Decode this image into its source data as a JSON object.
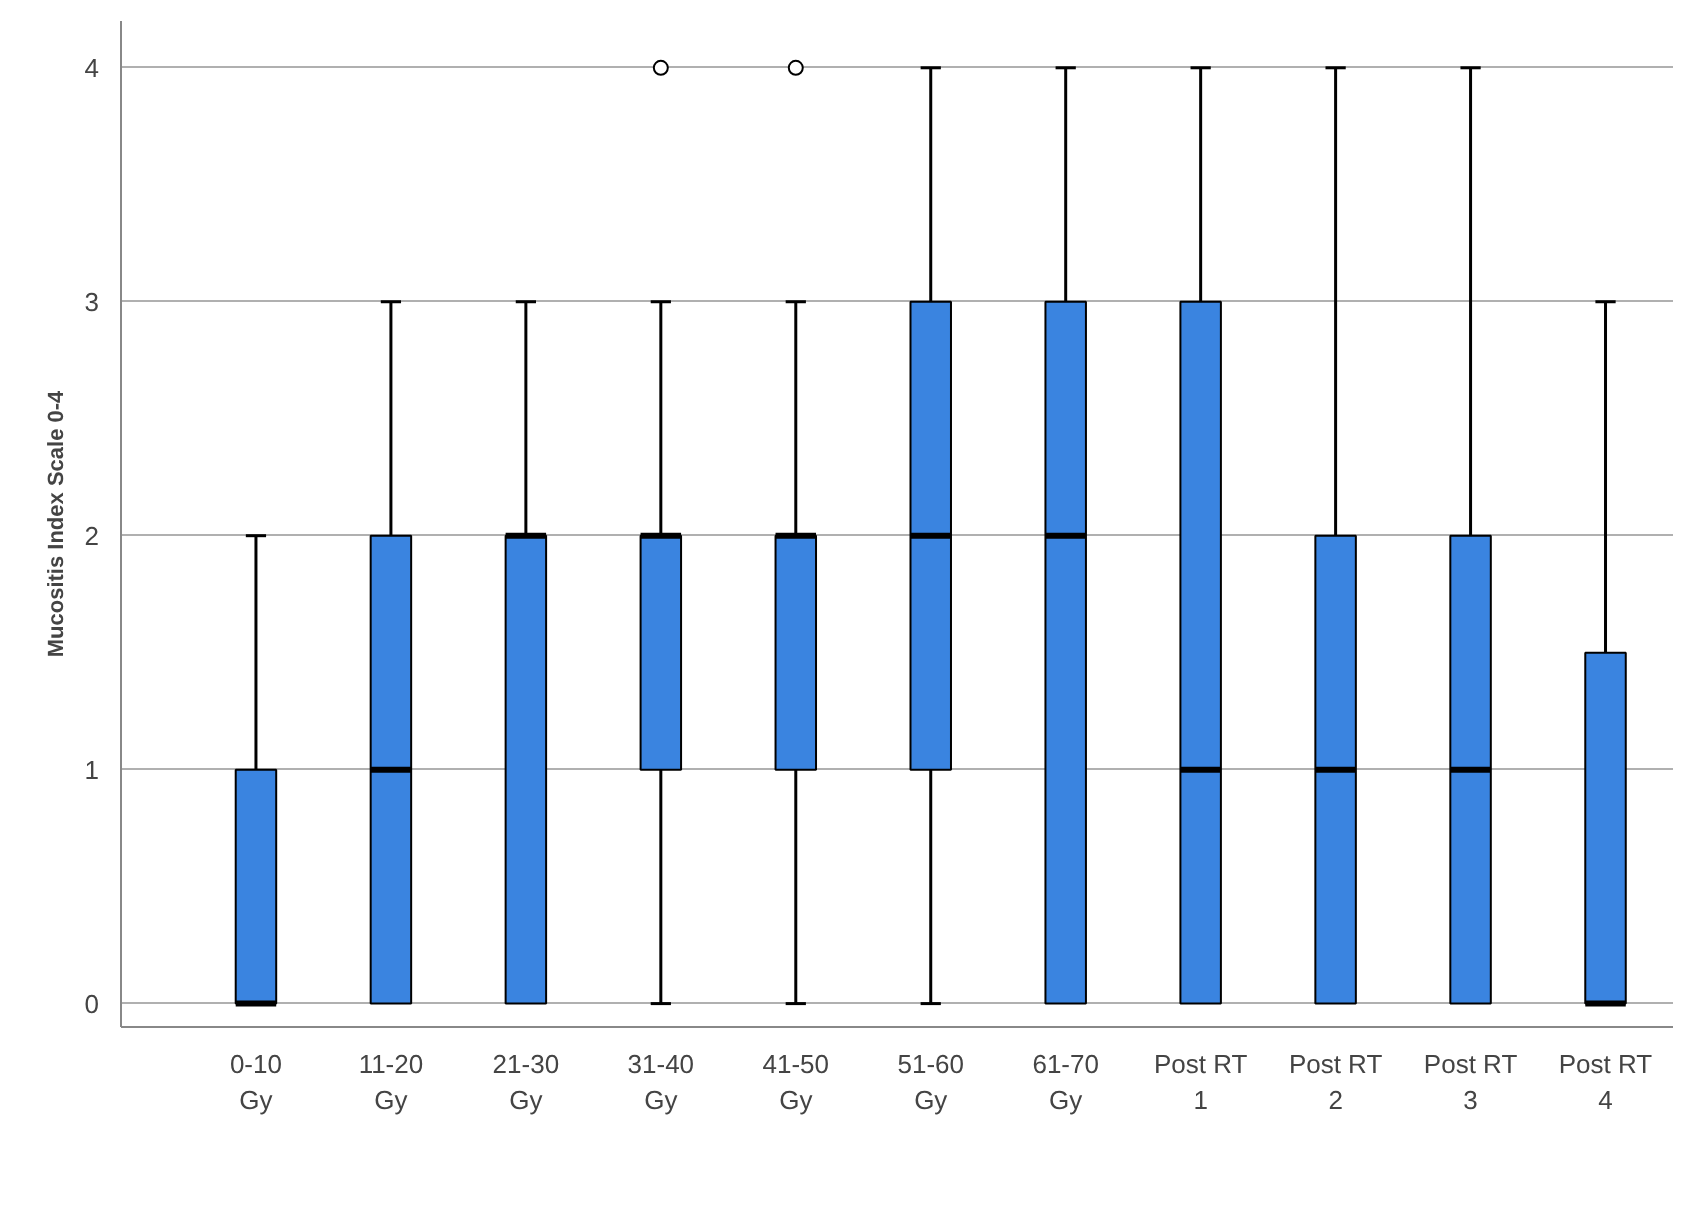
{
  "chart_data": {
    "type": "box",
    "ylabel": "Mucositis Index Scale 0-4",
    "categories": [
      "0-10\nGy",
      "11-20\nGy",
      "21-30\nGy",
      "31-40\nGy",
      "41-50\nGy",
      "51-60\nGy",
      "61-70\nGy",
      "Post RT\n1",
      "Post RT\n2",
      "Post RT\n3",
      "Post RT\n4"
    ],
    "color": "#3a84e0",
    "boxes": [
      {
        "low": 0,
        "q1": 0,
        "median": 0,
        "q3": 1,
        "high": 2
      },
      {
        "low": 0,
        "q1": 0,
        "median": 1,
        "q3": 2,
        "high": 3
      },
      {
        "low": 0,
        "q1": 0,
        "median": 2,
        "q3": 2,
        "high": 3
      },
      {
        "low": 0,
        "q1": 1,
        "median": 2,
        "q3": 2,
        "high": 3,
        "outliers": [
          4
        ]
      },
      {
        "low": 0,
        "q1": 1,
        "median": 2,
        "q3": 2,
        "high": 3,
        "outliers": [
          4
        ]
      },
      {
        "low": 0,
        "q1": 1,
        "median": 2,
        "q3": 3,
        "high": 4
      },
      {
        "low": 0,
        "q1": 0,
        "median": 2,
        "q3": 3,
        "high": 4
      },
      {
        "low": 0,
        "q1": 0,
        "median": 1,
        "q3": 3,
        "high": 4
      },
      {
        "low": 0,
        "q1": 0,
        "median": 1,
        "q3": 2,
        "high": 4
      },
      {
        "low": 0,
        "q1": 0,
        "median": 1,
        "q3": 2,
        "high": 4
      },
      {
        "low": 0,
        "q1": 0,
        "median": 0,
        "q3": 1.5,
        "high": 3
      }
    ],
    "ylim": [
      -0.1,
      4.2
    ],
    "yticks": [
      0,
      1,
      2,
      3,
      4
    ],
    "grid": "y"
  }
}
